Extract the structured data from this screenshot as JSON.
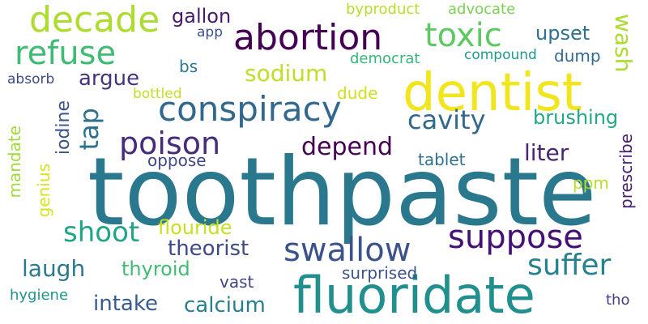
{
  "words": {
    "toothpaste": {
      "text": "toothpaste",
      "color": "#2a788e"
    },
    "dentist": {
      "text": "dentist",
      "color": "#f1e51d"
    },
    "fluoridate": {
      "text": "fluoridate",
      "color": "#218f8d"
    },
    "abortion": {
      "text": "abortion",
      "color": "#440154"
    },
    "conspiracy": {
      "text": "conspiracy",
      "color": "#31688e"
    },
    "decade": {
      "text": "decade",
      "color": "#addc30"
    },
    "toxic": {
      "text": "toxic",
      "color": "#5ec962"
    },
    "refuse": {
      "text": "refuse",
      "color": "#3fbc73"
    },
    "swallow": {
      "text": "swallow",
      "color": "#3b528b"
    },
    "suppose": {
      "text": "suppose",
      "color": "#440f76"
    },
    "suffer": {
      "text": "suffer",
      "color": "#26828e"
    },
    "poison": {
      "text": "poison",
      "color": "#472c7a"
    },
    "cavity": {
      "text": "cavity",
      "color": "#31688e"
    },
    "depend": {
      "text": "depend",
      "color": "#440154"
    },
    "shoot": {
      "text": "shoot",
      "color": "#20a486"
    },
    "liter": {
      "text": "liter",
      "color": "#482475"
    },
    "sodium": {
      "text": "sodium",
      "color": "#bddf26"
    },
    "argue": {
      "text": "argue",
      "color": "#46337e"
    },
    "laugh": {
      "text": "laugh",
      "color": "#2a788e"
    },
    "theorist": {
      "text": "theorist",
      "color": "#3e4989"
    },
    "flouride": {
      "text": "flouride",
      "color": "#c8e020"
    },
    "calcium": {
      "text": "calcium",
      "color": "#277f8e"
    },
    "intake": {
      "text": "intake",
      "color": "#365c8d"
    },
    "thyroid": {
      "text": "thyroid",
      "color": "#3fbc73"
    },
    "upset": {
      "text": "upset",
      "color": "#2c728e"
    },
    "gallon": {
      "text": "gallon",
      "color": "#481a6c"
    },
    "brushing": {
      "text": "brushing",
      "color": "#22a884"
    },
    "dump": {
      "text": "dump",
      "color": "#306a8e"
    },
    "tablet": {
      "text": "tablet",
      "color": "#2c728e"
    },
    "oppose": {
      "text": "oppose",
      "color": "#3f4788"
    },
    "ppm": {
      "text": "ppm",
      "color": "#b5de2b"
    },
    "surprised": {
      "text": "surprised",
      "color": "#3b528b"
    },
    "vast": {
      "text": "vast",
      "color": "#414487"
    },
    "dude": {
      "text": "dude",
      "color": "#d0e11c"
    },
    "bs": {
      "text": "bs",
      "color": "#2a788e"
    },
    "advocate": {
      "text": "advocate",
      "color": "#7ad151"
    },
    "byproduct": {
      "text": "byproduct",
      "color": "#b5de2b"
    },
    "democrat": {
      "text": "democrat",
      "color": "#35b779"
    },
    "compound": {
      "text": "compound",
      "color": "#1f9a8a"
    },
    "absorb": {
      "text": "absorb",
      "color": "#3e4989"
    },
    "bottled": {
      "text": "bottled",
      "color": "#c2df23"
    },
    "app": {
      "text": "app",
      "color": "#3b528b"
    },
    "hygiene": {
      "text": "hygiene",
      "color": "#1f958b"
    },
    "tho": {
      "text": "tho",
      "color": "#433e85"
    },
    "wash": {
      "text": "wash",
      "color": "#addc30"
    },
    "tap": {
      "text": "tap",
      "color": "#2c728e"
    },
    "iodine": {
      "text": "iodine",
      "color": "#3b528b"
    },
    "mandate": {
      "text": "mandate",
      "color": "#a0da39"
    },
    "genius": {
      "text": "genius",
      "color": "#d8e219"
    },
    "prescribe": {
      "text": "prescribe",
      "color": "#481f70"
    }
  }
}
